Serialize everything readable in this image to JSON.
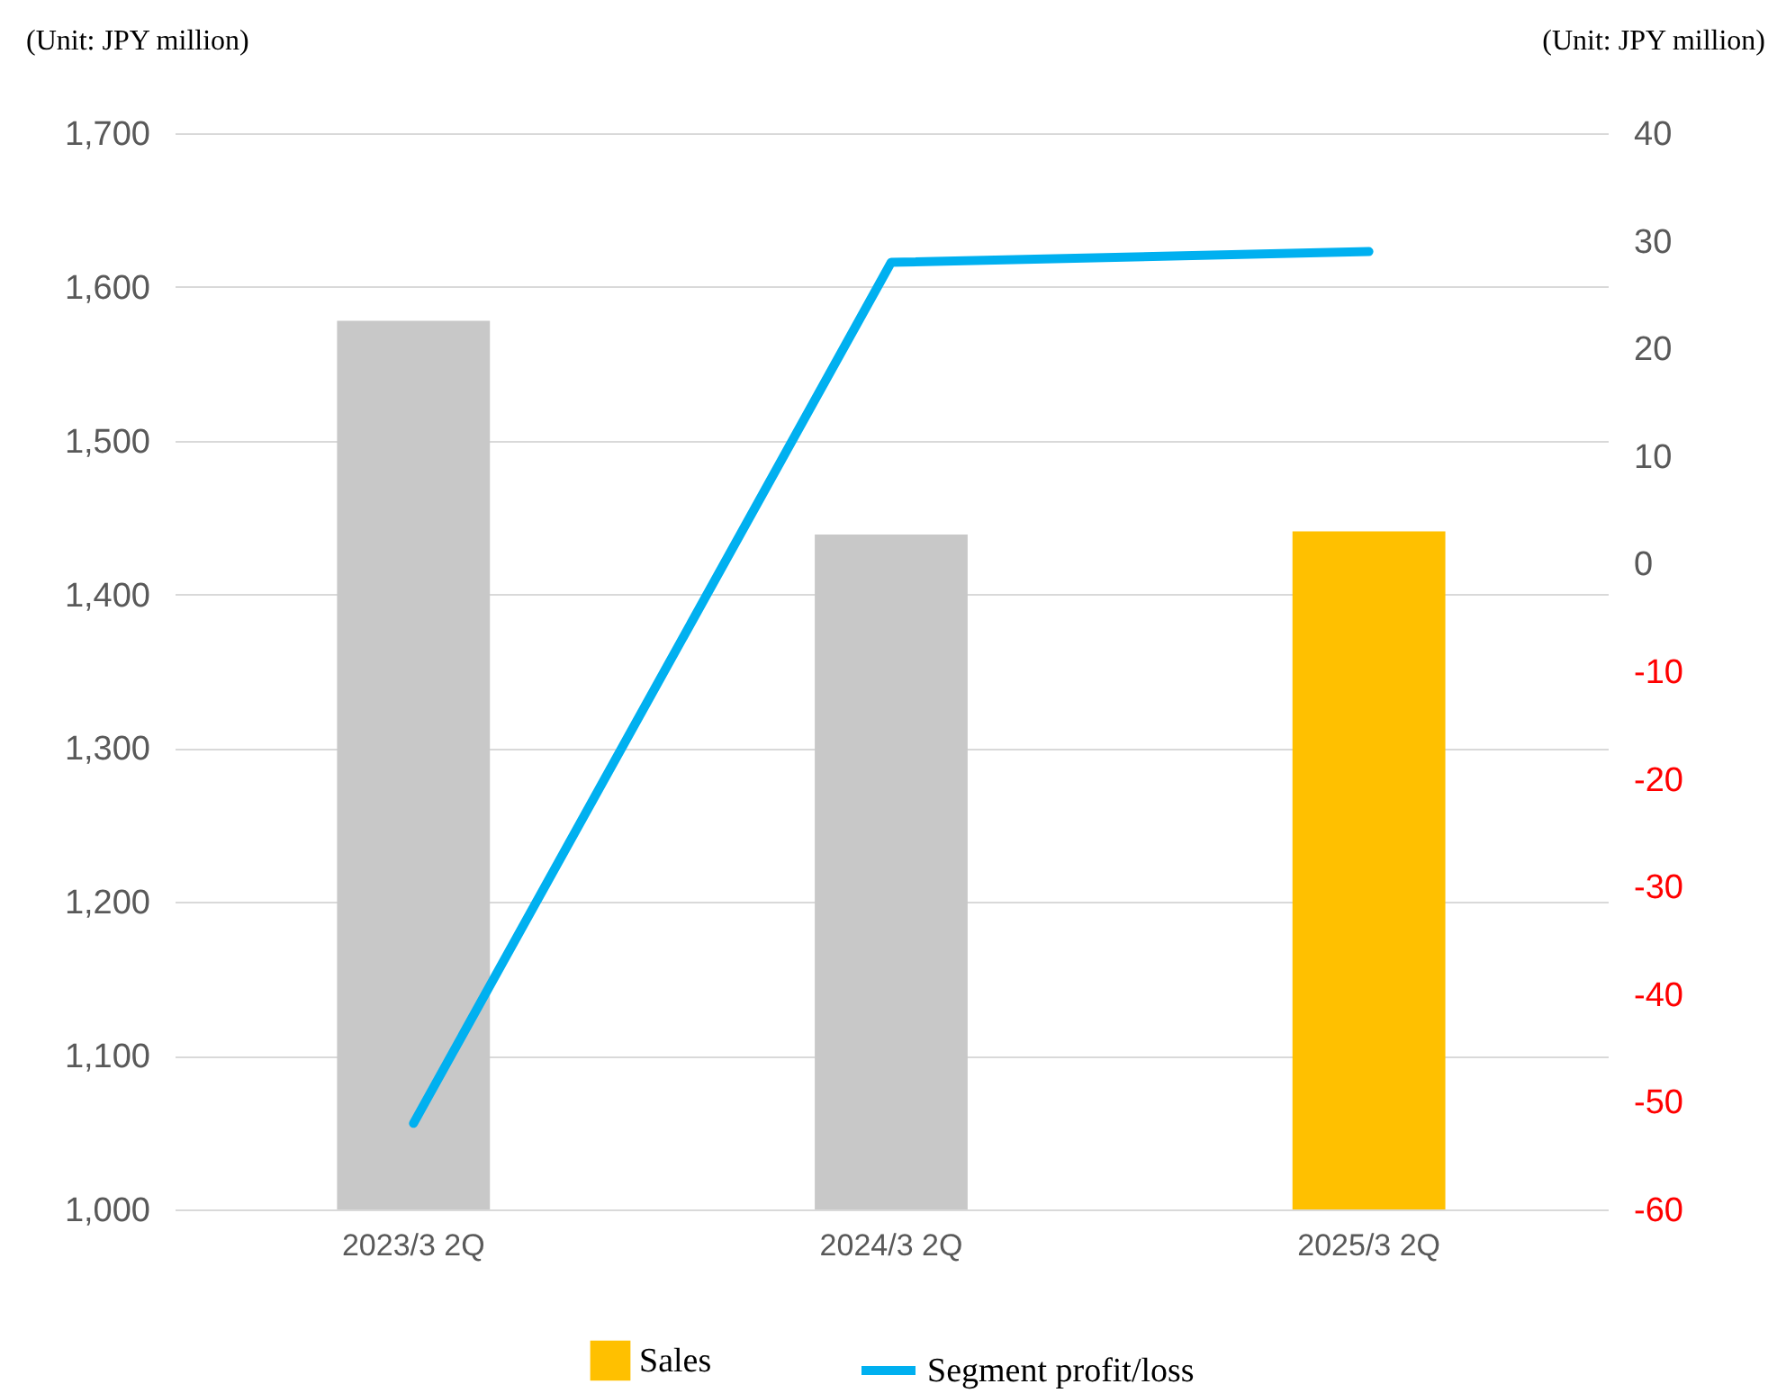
{
  "chart_data": {
    "type": "bar",
    "categories": [
      "2023/3 2Q",
      "2024/3 2Q",
      "2025/3 2Q"
    ],
    "ylabel": "(Unit: JPY million)",
    "y2label": "(Unit: JPY million)",
    "series": [
      {
        "name": "Sales",
        "color": "#ffc000",
        "colors": [
          "#c8c8c8",
          "#c8c8c8",
          "#ffc000"
        ],
        "values": [
          1578,
          1439,
          1441
        ]
      },
      {
        "name": "Segment profit/loss",
        "type": "line",
        "axis": "y2",
        "color": "#00b0f0",
        "values": [
          -52,
          28,
          29
        ]
      }
    ],
    "ylim": [
      1000,
      1700
    ],
    "yticks": [
      {
        "value": 1000,
        "label": "1,000"
      },
      {
        "value": 1100,
        "label": "1,100"
      },
      {
        "value": 1200,
        "label": "1,200"
      },
      {
        "value": 1300,
        "label": "1,300"
      },
      {
        "value": 1400,
        "label": "1,400"
      },
      {
        "value": 1500,
        "label": "1,500"
      },
      {
        "value": 1600,
        "label": "1,600"
      },
      {
        "value": 1700,
        "label": "1,700"
      }
    ],
    "y2lim": [
      -60,
      40
    ],
    "y2ticks": [
      -60,
      -50,
      -40,
      -30,
      -20,
      -10,
      0,
      10,
      20,
      30,
      40
    ],
    "grid": "y",
    "legend": "bottom"
  }
}
